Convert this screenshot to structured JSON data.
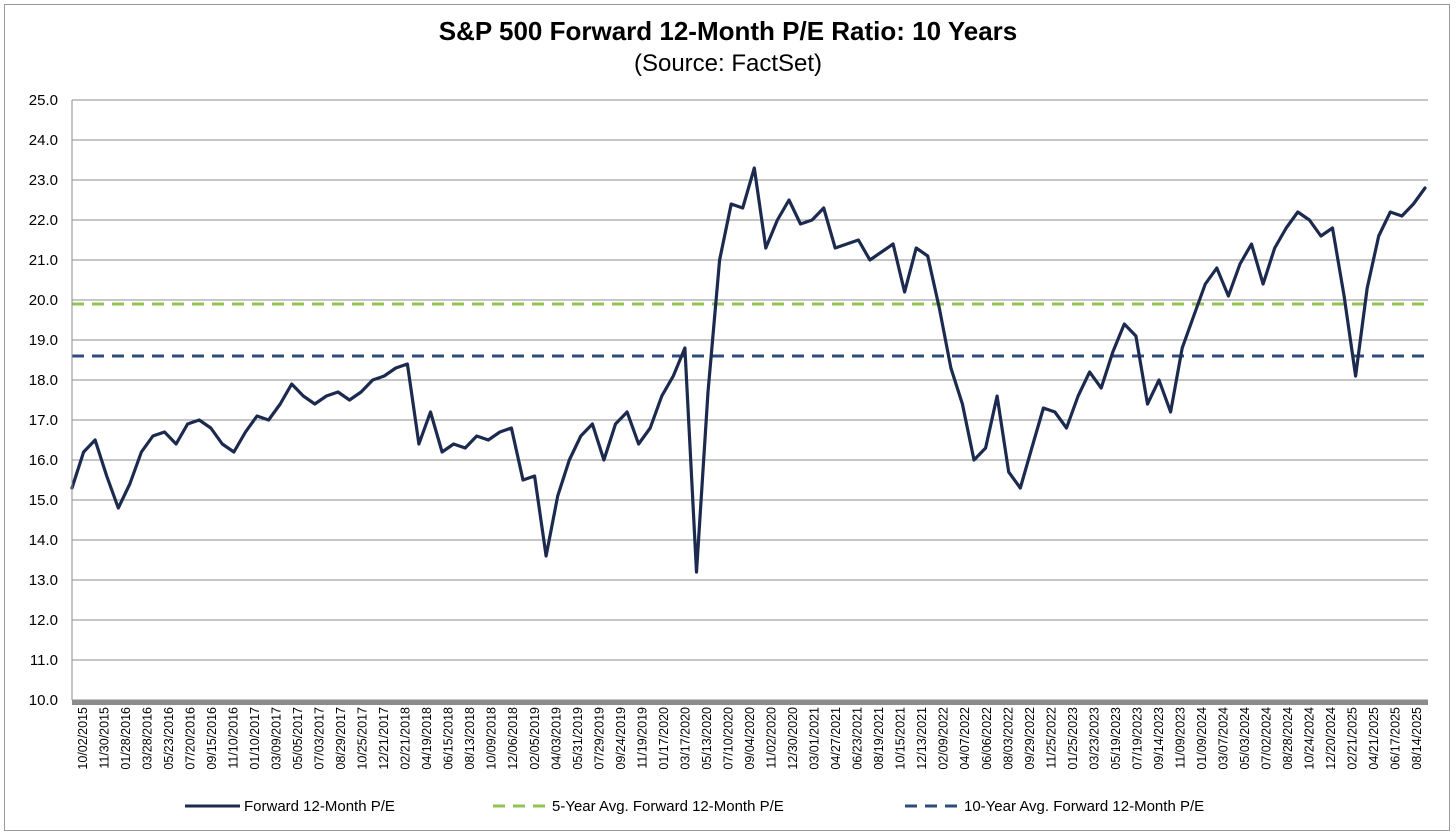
{
  "chart_data": {
    "type": "line",
    "title": "S&P 500 Forward 12-Month P/E Ratio: 10 Years",
    "subtitle": "(Source: FactSet)",
    "xlabel": "",
    "ylabel": "",
    "ylim": [
      10.0,
      25.0
    ],
    "y_ticks": [
      "10.0",
      "11.0",
      "12.0",
      "13.0",
      "14.0",
      "15.0",
      "16.0",
      "17.0",
      "18.0",
      "19.0",
      "20.0",
      "21.0",
      "22.0",
      "23.0",
      "24.0",
      "25.0"
    ],
    "x_tick_labels": [
      "10/02/2015",
      "11/30/2015",
      "01/28/2016",
      "03/28/2016",
      "05/23/2016",
      "07/20/2016",
      "09/15/2016",
      "11/10/2016",
      "01/10/2017",
      "03/09/2017",
      "05/05/2017",
      "07/03/2017",
      "08/29/2017",
      "10/25/2017",
      "12/21/2017",
      "02/21/2018",
      "04/19/2018",
      "06/15/2018",
      "08/13/2018",
      "10/09/2018",
      "12/06/2018",
      "02/05/2019",
      "04/03/2019",
      "05/31/2019",
      "07/29/2019",
      "09/24/2019",
      "11/19/2019",
      "01/17/2020",
      "03/17/2020",
      "05/13/2020",
      "07/10/2020",
      "09/04/2020",
      "11/02/2020",
      "12/30/2020",
      "03/01/2021",
      "04/27/2021",
      "06/23/2021",
      "08/19/2021",
      "10/15/2021",
      "12/13/2021",
      "02/09/2022",
      "04/07/2022",
      "06/06/2022",
      "08/03/2022",
      "09/29/2022",
      "11/25/2022",
      "01/25/2023",
      "03/23/2023",
      "05/19/2023",
      "07/19/2023",
      "09/14/2023",
      "11/09/2023",
      "01/09/2024",
      "03/07/2024",
      "05/03/2024",
      "07/02/2024",
      "08/28/2024",
      "10/24/2024",
      "12/20/2024",
      "02/21/2025",
      "04/21/2025",
      "06/17/2025",
      "08/14/2025"
    ],
    "series": [
      {
        "name": "Forward 12-Month P/E",
        "color": "#1b2a4e",
        "style": "solid",
        "values": [
          15.3,
          16.2,
          16.5,
          15.6,
          14.8,
          15.4,
          16.2,
          16.6,
          16.7,
          16.4,
          16.9,
          17.0,
          16.8,
          16.4,
          16.2,
          16.7,
          17.1,
          17.0,
          17.4,
          17.9,
          17.6,
          17.4,
          17.6,
          17.7,
          17.5,
          17.7,
          18.0,
          18.1,
          18.3,
          18.4,
          16.4,
          17.2,
          16.2,
          16.4,
          16.3,
          16.6,
          16.5,
          16.7,
          16.8,
          15.5,
          15.6,
          13.6,
          15.1,
          16.0,
          16.6,
          16.9,
          16.0,
          16.9,
          17.2,
          16.4,
          16.8,
          17.6,
          18.1,
          18.8,
          13.2,
          17.7,
          21.0,
          22.4,
          22.3,
          23.3,
          21.3,
          22.0,
          22.5,
          21.9,
          22.0,
          22.3,
          21.3,
          21.4,
          21.5,
          21.0,
          21.2,
          21.4,
          20.2,
          21.3,
          21.1,
          19.8,
          18.3,
          17.4,
          16.0,
          16.3,
          17.6,
          15.7,
          15.3,
          16.3,
          17.3,
          17.2,
          16.8,
          17.6,
          18.2,
          17.8,
          18.7,
          19.4,
          19.1,
          17.4,
          18.0,
          17.2,
          18.8,
          19.6,
          20.4,
          20.8,
          20.1,
          20.9,
          21.4,
          20.4,
          21.3,
          21.8,
          22.2,
          22.0,
          21.6,
          21.8,
          20.1,
          18.1,
          20.3,
          21.6,
          22.2,
          22.1,
          22.4,
          22.8
        ]
      },
      {
        "name": "5-Year Avg. Forward 12-Month P/E",
        "color": "#92c353",
        "style": "dashed",
        "value": 19.9
      },
      {
        "name": "10-Year Avg. Forward 12-Month P/E",
        "color": "#2f4b7c",
        "style": "dashed",
        "value": 18.6
      }
    ],
    "legend": "bottom",
    "grid": true
  }
}
